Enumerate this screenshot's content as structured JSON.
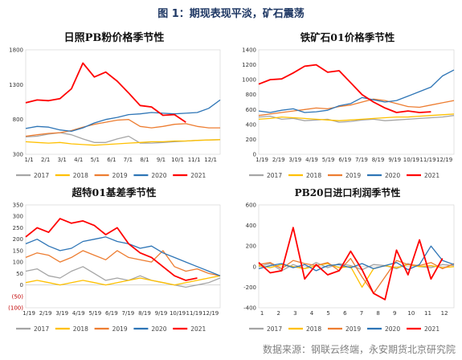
{
  "figure": {
    "title": "图 1：期现表现平淡，矿石震荡",
    "source": "数据来源：钢联云终端，永安期货北京研究院"
  },
  "chart_data": [
    {
      "id": "pb",
      "type": "line",
      "title": "日照PB粉价格季节性",
      "x_ticks": [
        "1/1",
        "2/1",
        "3/1",
        "4/1",
        "5/1",
        "6/1",
        "7/1",
        "8/1",
        "9/1",
        "10/1",
        "11/1",
        "12/1"
      ],
      "ylim": [
        300,
        1800
      ],
      "y_ticks": [
        300,
        800,
        1300,
        1800
      ],
      "y_ticks_red": [],
      "series": [
        {
          "name": "2017",
          "color": "#a5a5a5",
          "values": [
            550,
            560,
            590,
            610,
            580,
            520,
            470,
            470,
            520,
            560,
            460,
            460,
            470,
            480,
            490,
            500,
            505,
            510
          ]
        },
        {
          "name": "2018",
          "color": "#ffc000",
          "values": [
            480,
            470,
            460,
            470,
            450,
            440,
            430,
            440,
            450,
            460,
            470,
            480,
            480,
            490,
            490,
            500,
            505,
            510
          ]
        },
        {
          "name": "2019",
          "color": "#ed7d31",
          "values": [
            560,
            580,
            600,
            610,
            640,
            690,
            730,
            760,
            790,
            800,
            700,
            680,
            700,
            730,
            740,
            700,
            680,
            680
          ]
        },
        {
          "name": "2020",
          "color": "#2e75b6",
          "values": [
            670,
            700,
            690,
            650,
            630,
            680,
            750,
            800,
            830,
            870,
            880,
            900,
            890,
            880,
            890,
            900,
            960,
            1080
          ]
        },
        {
          "name": "2021",
          "color": "#ff0000",
          "values": [
            1040,
            1080,
            1070,
            1100,
            1240,
            1610,
            1410,
            1480,
            1350,
            1180,
            1000,
            980,
            860,
            870,
            760
          ]
        }
      ]
    },
    {
      "id": "iron",
      "type": "line",
      "title": "铁矿石01价格季节性",
      "x_ticks": [
        "1/19",
        "2/19",
        "3/19",
        "4/19",
        "5/19",
        "6/19",
        "7/19",
        "8/19",
        "9/19",
        "10/19",
        "11/19",
        "12/19"
      ],
      "ylim": [
        0,
        1400
      ],
      "y_ticks": [
        0,
        200,
        400,
        600,
        800,
        1000,
        1200,
        1400
      ],
      "y_ticks_red": [],
      "series": [
        {
          "name": "2017",
          "color": "#a5a5a5",
          "values": [
            500,
            510,
            470,
            480,
            450,
            460,
            470,
            430,
            440,
            460,
            470,
            450,
            460,
            470,
            480,
            490,
            500,
            520
          ]
        },
        {
          "name": "2018",
          "color": "#ffc000",
          "values": [
            470,
            480,
            500,
            490,
            480,
            470,
            460,
            450,
            460,
            470,
            480,
            490,
            500,
            500,
            510,
            520,
            530,
            540
          ]
        },
        {
          "name": "2019",
          "color": "#ed7d31",
          "values": [
            520,
            540,
            560,
            580,
            600,
            620,
            610,
            640,
            660,
            700,
            740,
            720,
            680,
            640,
            630,
            660,
            690,
            720
          ]
        },
        {
          "name": "2020",
          "color": "#2e75b6",
          "values": [
            580,
            560,
            590,
            610,
            560,
            570,
            590,
            650,
            680,
            760,
            730,
            700,
            720,
            780,
            840,
            900,
            1050,
            1130
          ]
        },
        {
          "name": "2021",
          "color": "#ff0000",
          "values": [
            940,
            1000,
            1010,
            1090,
            1180,
            1200,
            1100,
            1120,
            960,
            800,
            700,
            620,
            560,
            580,
            560,
            570
          ]
        }
      ]
    },
    {
      "id": "basis",
      "type": "line",
      "title": "超特01基差季节性",
      "x_ticks": [
        "1/19",
        "2/19",
        "3/19",
        "4/19",
        "5/19",
        "6/19",
        "7/19",
        "8/19",
        "9/19",
        "10/19",
        "11/19",
        "12/19"
      ],
      "ylim": [
        -100,
        350
      ],
      "y_ticks": [
        -100,
        -50,
        0,
        50,
        100,
        150,
        200,
        250,
        300,
        350
      ],
      "y_ticks_red": [
        -100,
        -50
      ],
      "series": [
        {
          "name": "2017",
          "color": "#a5a5a5",
          "values": [
            60,
            70,
            40,
            30,
            60,
            80,
            50,
            20,
            30,
            20,
            40,
            20,
            10,
            0,
            -10,
            0,
            10,
            30
          ]
        },
        {
          "name": "2018",
          "color": "#ffc000",
          "values": [
            10,
            20,
            10,
            0,
            10,
            20,
            10,
            0,
            10,
            20,
            30,
            20,
            10,
            0,
            10,
            20,
            30,
            40
          ]
        },
        {
          "name": "2019",
          "color": "#ed7d31",
          "values": [
            120,
            140,
            130,
            100,
            120,
            150,
            130,
            110,
            150,
            120,
            110,
            100,
            150,
            80,
            60,
            70,
            50,
            40
          ]
        },
        {
          "name": "2020",
          "color": "#2e75b6",
          "values": [
            180,
            200,
            170,
            150,
            160,
            190,
            200,
            210,
            190,
            180,
            160,
            170,
            140,
            120,
            100,
            80,
            60,
            40
          ]
        },
        {
          "name": "2021",
          "color": "#ff0000",
          "values": [
            210,
            250,
            230,
            290,
            270,
            280,
            260,
            220,
            250,
            180,
            140,
            120,
            80,
            40,
            20,
            30
          ]
        }
      ]
    },
    {
      "id": "profit",
      "type": "line",
      "title": "PB20日进口利润季节性",
      "x_ticks": [
        "1",
        "2",
        "3",
        "4",
        "5",
        "6",
        "7",
        "8",
        "9",
        "10",
        "11",
        "12"
      ],
      "ylim": [
        -400,
        600
      ],
      "y_ticks": [
        -400,
        -200,
        0,
        200,
        400,
        600
      ],
      "y_ticks_red": [],
      "series": [
        {
          "name": "2017",
          "color": "#a5a5a5",
          "values": [
            0,
            30,
            -40,
            20,
            -20,
            40,
            -10,
            30,
            10,
            -30,
            20,
            10,
            -20,
            30,
            0,
            -10,
            20,
            10
          ]
        },
        {
          "name": "2018",
          "color": "#ffc000",
          "values": [
            10,
            -10,
            20,
            0,
            -20,
            10,
            30,
            -10,
            0,
            -200,
            -20,
            10,
            -10,
            20,
            0,
            10,
            -10,
            0
          ]
        },
        {
          "name": "2019",
          "color": "#ed7d31",
          "values": [
            20,
            40,
            -20,
            60,
            30,
            10,
            40,
            -40,
            80,
            -100,
            -260,
            -100,
            60,
            20,
            10,
            40,
            -20,
            30
          ]
        },
        {
          "name": "2020",
          "color": "#2e75b6",
          "values": [
            -20,
            10,
            30,
            -10,
            20,
            -40,
            10,
            20,
            -10,
            30,
            -20,
            10,
            40,
            -30,
            20,
            200,
            60,
            20
          ]
        },
        {
          "name": "2021",
          "color": "#ff0000",
          "values": [
            40,
            -60,
            -40,
            380,
            -120,
            20,
            -80,
            -40,
            150,
            -30,
            -260,
            -320,
            160,
            -80,
            260,
            -120,
            80
          ]
        }
      ]
    }
  ]
}
